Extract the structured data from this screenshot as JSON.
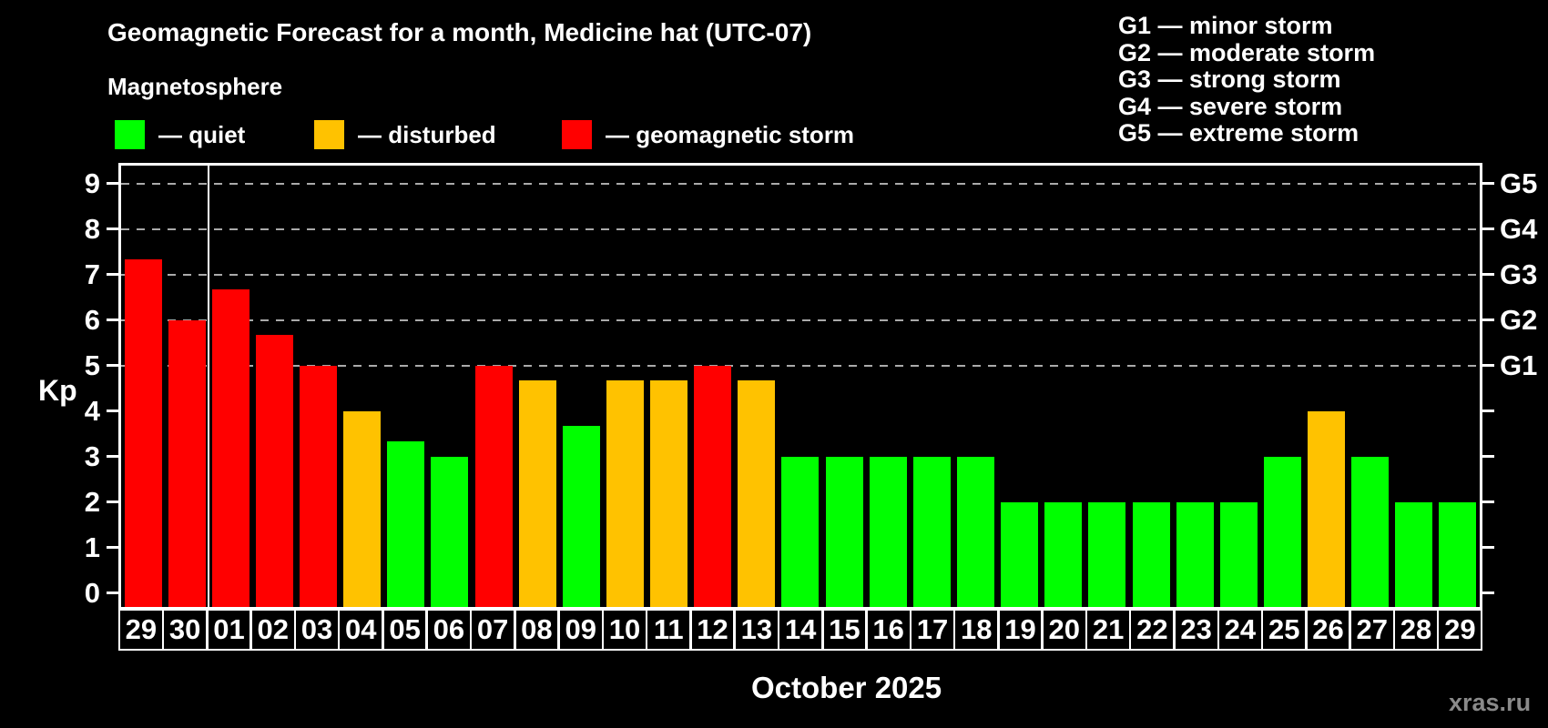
{
  "header": {
    "title": "Geomagnetic Forecast for a month, Medicine hat (UTC-07)",
    "subtitle": "Magnetosphere"
  },
  "legend": {
    "items": [
      {
        "id": "quiet",
        "label": "— quiet",
        "color": "#00ff00"
      },
      {
        "id": "disturbed",
        "label": "— disturbed",
        "color": "#ffc200"
      },
      {
        "id": "storm",
        "label": "— geomagnetic storm",
        "color": "#ff0000"
      }
    ]
  },
  "g_scale_legend": {
    "items": [
      "G1 — minor storm",
      "G2 — moderate storm",
      "G3 — strong storm",
      "G4 — severe storm",
      "G5 — extreme storm"
    ]
  },
  "watermark": "xras.ru",
  "chart_data": {
    "type": "bar",
    "title": "Geomagnetic Forecast for a month, Medicine hat (UTC-07)",
    "ylabel": "Kp",
    "xlabel": "October 2025",
    "ylim": [
      0,
      9
    ],
    "yticks": [
      0,
      1,
      2,
      3,
      4,
      5,
      6,
      7,
      8,
      9
    ],
    "gridlines_at": [
      5,
      6,
      7,
      8,
      9
    ],
    "grid": "dashed, only at Kp 5-9",
    "legend_position": "top",
    "right_axis_labels": [
      {
        "kp": 5,
        "label": "G1"
      },
      {
        "kp": 6,
        "label": "G2"
      },
      {
        "kp": 7,
        "label": "G3"
      },
      {
        "kp": 8,
        "label": "G4"
      },
      {
        "kp": 9,
        "label": "G5"
      }
    ],
    "month_separator_after_index": 1,
    "categories": [
      "29",
      "30",
      "01",
      "02",
      "03",
      "04",
      "05",
      "06",
      "07",
      "08",
      "09",
      "10",
      "11",
      "12",
      "13",
      "14",
      "15",
      "16",
      "17",
      "18",
      "19",
      "20",
      "21",
      "22",
      "23",
      "24",
      "25",
      "26",
      "27",
      "28",
      "29"
    ],
    "values": [
      7.33,
      6,
      6.67,
      5.67,
      5,
      4,
      3.33,
      3,
      5,
      4.67,
      3.67,
      4.67,
      4.67,
      5,
      4.67,
      3,
      3,
      3,
      3,
      3,
      2,
      2,
      2,
      2,
      2,
      2,
      3,
      4,
      3,
      2,
      2
    ],
    "statuses": [
      "storm",
      "storm",
      "storm",
      "storm",
      "storm",
      "disturbed",
      "quiet",
      "quiet",
      "storm",
      "disturbed",
      "quiet",
      "disturbed",
      "disturbed",
      "storm",
      "disturbed",
      "quiet",
      "quiet",
      "quiet",
      "quiet",
      "quiet",
      "quiet",
      "quiet",
      "quiet",
      "quiet",
      "quiet",
      "quiet",
      "quiet",
      "disturbed",
      "quiet",
      "quiet",
      "quiet"
    ],
    "colors": {
      "quiet": "#00ff00",
      "disturbed": "#ffc200",
      "storm": "#ff0000"
    }
  }
}
